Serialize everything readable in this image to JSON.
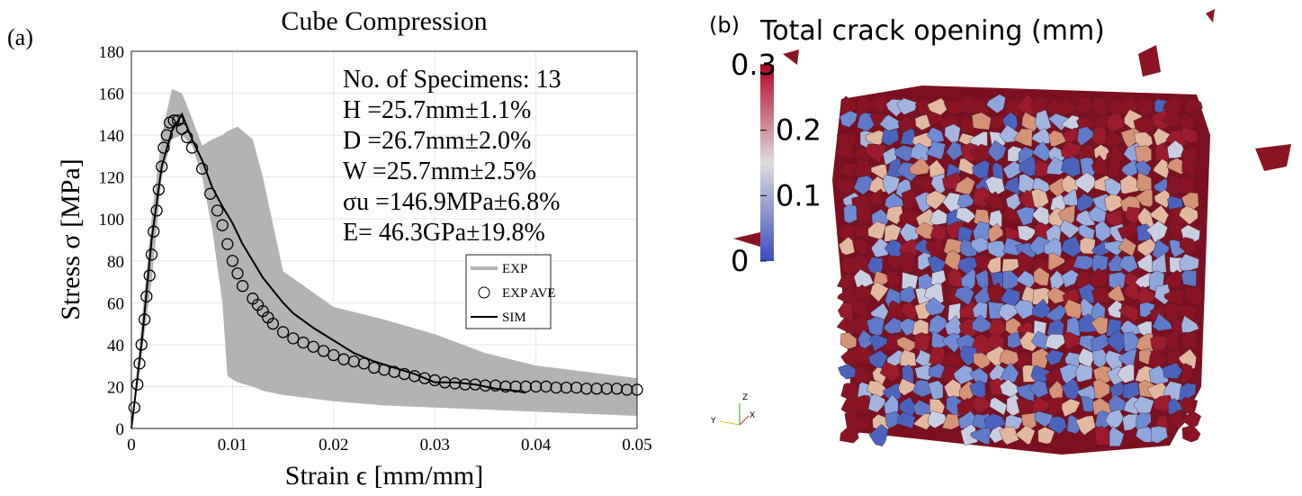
{
  "chart_data": {
    "type": "line",
    "panel_label": "(a)",
    "title": "Cube Compression",
    "xlabel": "Strain ϵ [mm/mm]",
    "ylabel": "Stress σ [MPa]",
    "xlim": [
      0,
      0.05
    ],
    "xticks": [
      0,
      0.01,
      0.02,
      0.03,
      0.04,
      0.05
    ],
    "ylim": [
      0,
      180
    ],
    "yticks": [
      0,
      20,
      40,
      60,
      80,
      100,
      120,
      140,
      160,
      180
    ],
    "grid": true,
    "legend": "lower right",
    "annotations": [
      "No. of Specimens: 13",
      "H =25.7mm±1.1%",
      "D =26.7mm±2.0%",
      "W =25.7mm±2.5%",
      "σu =146.9MPa±6.8%",
      "E= 46.3GPa±19.8%"
    ],
    "series": [
      {
        "name": "EXP",
        "color": "#b3b3b3",
        "style": "band",
        "x": [
          0,
          0.002,
          0.003,
          0.004,
          0.005,
          0.006,
          0.007,
          0.008,
          0.009,
          0.0095,
          0.0105,
          0.012,
          0.013,
          0.015,
          0.02,
          0.025,
          0.03,
          0.035,
          0.04,
          0.045,
          0.05
        ],
        "upper": [
          0,
          100,
          140,
          162,
          160,
          148,
          135,
          138,
          140,
          142,
          144,
          138,
          120,
          75,
          58,
          52,
          45,
          36,
          30,
          27,
          24
        ],
        "lower": [
          0,
          70,
          120,
          138,
          140,
          135,
          120,
          95,
          60,
          25,
          22,
          20,
          18,
          16,
          13,
          11,
          10,
          9,
          8,
          7,
          6
        ]
      },
      {
        "name": "EXP AVE",
        "color": "#000000",
        "style": "markers",
        "x": [
          0.0003,
          0.0006,
          0.0008,
          0.001,
          0.0013,
          0.0015,
          0.0018,
          0.002,
          0.0022,
          0.0025,
          0.0027,
          0.003,
          0.0032,
          0.0035,
          0.0038,
          0.0042,
          0.0046,
          0.005,
          0.0055,
          0.006,
          0.007,
          0.0078,
          0.0085,
          0.009,
          0.0095,
          0.01,
          0.0105,
          0.011,
          0.012,
          0.0125,
          0.013,
          0.0135,
          0.014,
          0.015,
          0.016,
          0.017,
          0.018,
          0.019,
          0.02,
          0.021,
          0.022,
          0.023,
          0.024,
          0.025,
          0.026,
          0.027,
          0.028,
          0.029,
          0.03,
          0.031,
          0.032,
          0.033,
          0.034,
          0.035,
          0.036,
          0.037,
          0.038,
          0.039,
          0.04,
          0.041,
          0.042,
          0.043,
          0.044,
          0.045,
          0.046,
          0.047,
          0.048,
          0.049,
          0.05
        ],
        "values": [
          10,
          21,
          31,
          40,
          52,
          63,
          73,
          83,
          94,
          104,
          114,
          125,
          134,
          140,
          146,
          147,
          147,
          143,
          139,
          134,
          124,
          112,
          104,
          97,
          88,
          80,
          74,
          68,
          62,
          59,
          56,
          53,
          50,
          46,
          43,
          41,
          39,
          37,
          35,
          33,
          32,
          31,
          29,
          28,
          27,
          26,
          25,
          24,
          23,
          22,
          21.5,
          21,
          21,
          20.5,
          20.5,
          20,
          20,
          20,
          20,
          20,
          19.5,
          19.5,
          19.5,
          19,
          19,
          19,
          19,
          18.5,
          18.5
        ]
      },
      {
        "name": "SIM",
        "color": "#000000",
        "style": "line",
        "x": [
          0,
          0.001,
          0.002,
          0.003,
          0.004,
          0.005,
          0.006,
          0.007,
          0.008,
          0.009,
          0.01,
          0.011,
          0.012,
          0.013,
          0.014,
          0.015,
          0.016,
          0.018,
          0.02,
          0.022,
          0.024,
          0.026,
          0.028,
          0.03,
          0.032,
          0.034,
          0.036,
          0.038,
          0.039
        ],
        "values": [
          0,
          40,
          90,
          125,
          142,
          150,
          138,
          128,
          115,
          106,
          98,
          88,
          80,
          72,
          66,
          60,
          55,
          48,
          42,
          36,
          32,
          29,
          26,
          22,
          22,
          21,
          19,
          18,
          17
        ]
      }
    ]
  },
  "panel_b": {
    "panel_label": "(b)",
    "title": "Total crack opening (mm)",
    "colorbar": {
      "range": [
        0,
        0.3
      ],
      "ticks": [
        0,
        0.1,
        0.2,
        0.3
      ]
    },
    "axes_labels": [
      "Z",
      "Y",
      "X"
    ]
  }
}
